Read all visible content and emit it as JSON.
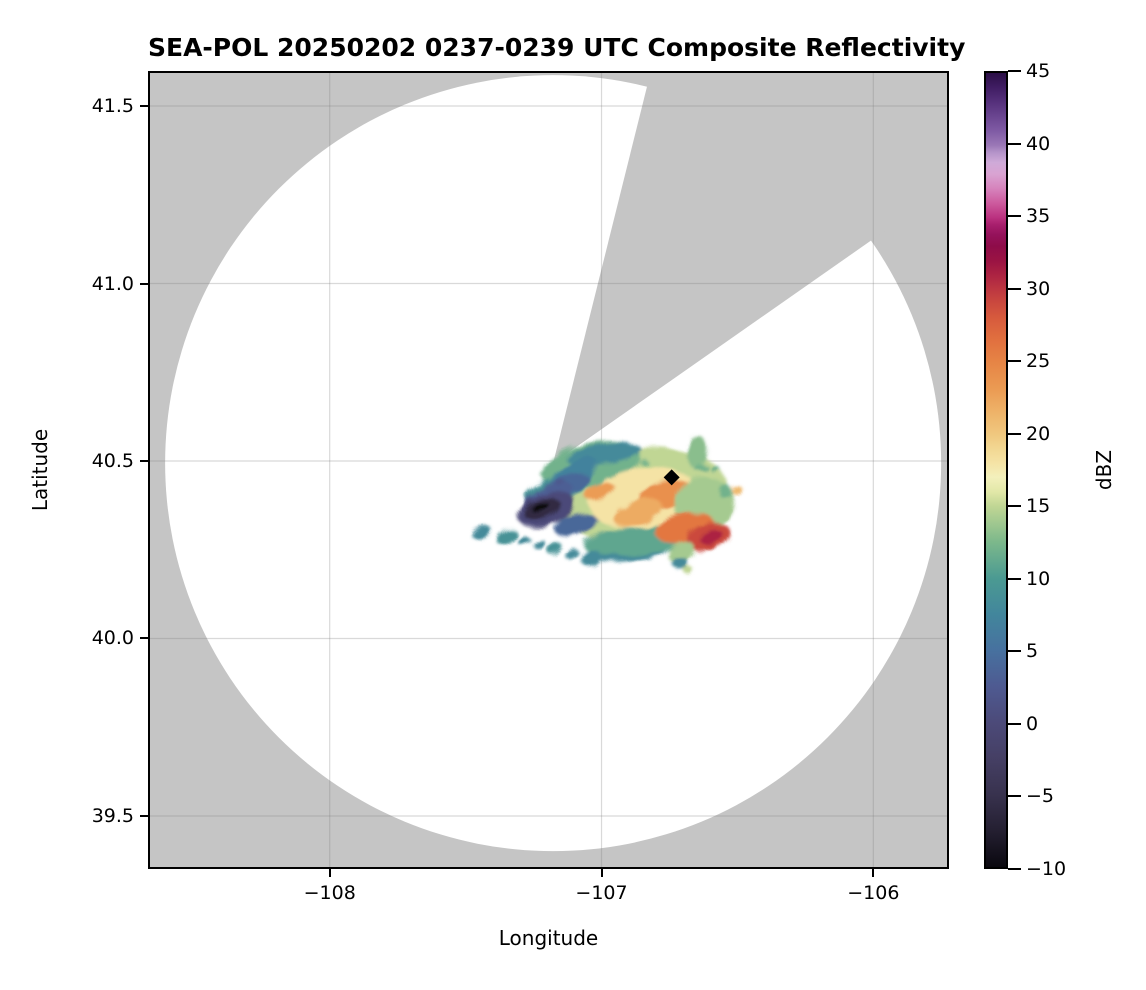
{
  "title": "SEA-POL 20250202 0237-0239 UTC Composite Reflectivity",
  "axes": {
    "xlabel": "Longitude",
    "ylabel": "Latitude",
    "xlim": [
      -108.6685,
      -105.7216
    ],
    "ylim": [
      39.3507,
      41.5986
    ],
    "x_ticks": [
      {
        "value": -108,
        "label": "−108"
      },
      {
        "value": -107,
        "label": "−107"
      },
      {
        "value": -106,
        "label": "−106"
      }
    ],
    "y_ticks": [
      {
        "value": 41.5,
        "label": "41.5"
      },
      {
        "value": 41.0,
        "label": "41.0"
      },
      {
        "value": 40.5,
        "label": "40.5"
      },
      {
        "value": 40.0,
        "label": "40.0"
      },
      {
        "value": 39.5,
        "label": "39.5"
      }
    ],
    "grid_color": "rgba(128,128,128,0.30)",
    "spine_color": "#000000"
  },
  "colorbar": {
    "label": "dBZ",
    "min": -10,
    "max": 45,
    "ticks": [
      {
        "value": 45,
        "label": "45"
      },
      {
        "value": 40,
        "label": "40"
      },
      {
        "value": 35,
        "label": "35"
      },
      {
        "value": 30,
        "label": "30"
      },
      {
        "value": 25,
        "label": "25"
      },
      {
        "value": 20,
        "label": "20"
      },
      {
        "value": 15,
        "label": "15"
      },
      {
        "value": 10,
        "label": "10"
      },
      {
        "value": 5,
        "label": "5"
      },
      {
        "value": 0,
        "label": "0"
      },
      {
        "value": -5,
        "label": "−5"
      },
      {
        "value": -10,
        "label": "−10"
      }
    ]
  },
  "chart_data": {
    "type": "heatmap",
    "title": "SEA-POL 20250202 0237-0239 UTC Composite Reflectivity",
    "variable": "composite radar reflectivity",
    "units": "dBZ",
    "xlabel": "Longitude",
    "ylabel": "Latitude",
    "xlim": [
      -108.6685,
      -105.7216
    ],
    "ylim": [
      39.3507,
      41.5986
    ],
    "value_range": [
      -10,
      45
    ],
    "no_data_color": "#c5c5c5",
    "scan_area_color": "#ffffff",
    "radar": {
      "name": "SEA-POL",
      "longitude": -107.178,
      "latitude": 40.494,
      "range_deg_lat": 1.093,
      "blocked_sector_azimuth_deg": [
        14,
        55
      ]
    },
    "site_marker": {
      "shape": "diamond",
      "color": "#000000",
      "longitude": -106.742,
      "latitude": 40.454,
      "half_size_px": 8
    },
    "colormap_name": "ChaseSpectral-like",
    "colormap_stops": [
      [
        -10,
        "#0a080f"
      ],
      [
        -7.5,
        "#241f31"
      ],
      [
        -5,
        "#38324e"
      ],
      [
        -2.5,
        "#453f64"
      ],
      [
        0,
        "#4c4a79"
      ],
      [
        2.5,
        "#4e5a91"
      ],
      [
        5,
        "#47719f"
      ],
      [
        7.5,
        "#42869c"
      ],
      [
        10,
        "#4b9a92"
      ],
      [
        12.5,
        "#7cb88b"
      ],
      [
        15,
        "#c0d694"
      ],
      [
        16,
        "#e2e8a8"
      ],
      [
        17,
        "#f3f0bc"
      ],
      [
        18,
        "#f5e3a5"
      ],
      [
        19,
        "#f2d792"
      ],
      [
        20,
        "#f0c77e"
      ],
      [
        21.5,
        "#eeb369"
      ],
      [
        23,
        "#eb9c54"
      ],
      [
        25,
        "#e68445"
      ],
      [
        26.5,
        "#e1703f"
      ],
      [
        28,
        "#d75b3d"
      ],
      [
        29,
        "#cb4a3e"
      ],
      [
        30,
        "#bd3741"
      ],
      [
        31,
        "#ac2342"
      ],
      [
        32,
        "#9a1343"
      ],
      [
        33,
        "#8e0c49"
      ],
      [
        33.8,
        "#95125b"
      ],
      [
        34.5,
        "#a81f6d"
      ],
      [
        35,
        "#bb3280"
      ],
      [
        36,
        "#cd5b9e"
      ],
      [
        37,
        "#d683bc"
      ],
      [
        38,
        "#d9a3d2"
      ],
      [
        38.8,
        "#cfaad8"
      ],
      [
        39.5,
        "#b493c9"
      ],
      [
        40,
        "#9a77b6"
      ],
      [
        41,
        "#7f5aa4"
      ],
      [
        42,
        "#6a4590"
      ],
      [
        43,
        "#55307b"
      ],
      [
        44,
        "#401d63"
      ],
      [
        45,
        "#2b0e46"
      ]
    ],
    "echo_blobs_format": [
      "lon_center",
      "lat_center",
      "rx_deg_lon",
      "ry_deg_lat",
      "rotation_deg",
      "dBZ"
    ],
    "echo_blobs": [
      [
        -106.858,
        40.404,
        0.324,
        0.132,
        -6,
        15
      ],
      [
        -107.039,
        40.489,
        0.184,
        0.062,
        -12,
        12
      ],
      [
        -106.994,
        40.52,
        0.14,
        0.028,
        -8,
        8
      ],
      [
        -107.105,
        40.458,
        0.103,
        0.034,
        -35,
        7
      ],
      [
        -107.167,
        40.418,
        0.118,
        0.031,
        -12,
        9
      ],
      [
        -107.123,
        40.432,
        0.081,
        0.028,
        -20,
        4
      ],
      [
        -107.094,
        40.32,
        0.081,
        0.031,
        -15,
        4
      ],
      [
        -107.197,
        40.401,
        0.096,
        0.028,
        -22,
        3
      ],
      [
        -107.204,
        40.365,
        0.11,
        0.045,
        -18,
        0
      ],
      [
        -107.219,
        40.365,
        0.07,
        0.028,
        -20,
        -6
      ],
      [
        -107.226,
        40.37,
        0.033,
        0.011,
        -20,
        -10
      ],
      [
        -106.902,
        40.246,
        0.147,
        0.028,
        -5,
        8
      ],
      [
        -106.866,
        40.275,
        0.202,
        0.039,
        -5,
        11
      ],
      [
        -106.847,
        40.396,
        0.202,
        0.085,
        -8,
        18
      ],
      [
        -107.006,
        40.413,
        0.059,
        0.023,
        -15,
        23
      ],
      [
        -106.755,
        40.407,
        0.103,
        0.039,
        -10,
        24
      ],
      [
        -106.866,
        40.354,
        0.092,
        0.034,
        -20,
        22
      ],
      [
        -106.623,
        40.382,
        0.11,
        0.073,
        0,
        14
      ],
      [
        -106.693,
        40.311,
        0.11,
        0.039,
        -12,
        26
      ],
      [
        -106.608,
        40.286,
        0.085,
        0.037,
        -15,
        29
      ],
      [
        -106.597,
        40.286,
        0.044,
        0.02,
        -15,
        31
      ],
      [
        -106.649,
        40.525,
        0.04,
        0.045,
        5,
        13
      ],
      [
        -106.502,
        40.418,
        0.022,
        0.011,
        0,
        21
      ],
      [
        -106.546,
        40.415,
        0.022,
        0.02,
        0,
        12
      ],
      [
        -106.844,
        40.497,
        0.015,
        0.008,
        0,
        12
      ],
      [
        -106.631,
        40.48,
        0.029,
        0.008,
        0,
        12
      ],
      [
        -106.579,
        40.475,
        0.018,
        0.008,
        0,
        12
      ],
      [
        -106.707,
        40.244,
        0.051,
        0.028,
        -30,
        14
      ],
      [
        -106.711,
        40.213,
        0.029,
        0.017,
        0,
        8
      ],
      [
        -106.682,
        40.193,
        0.018,
        0.011,
        0,
        15
      ],
      [
        -107.039,
        40.227,
        0.037,
        0.023,
        -20,
        8
      ],
      [
        -107.443,
        40.3,
        0.037,
        0.017,
        -20,
        8
      ],
      [
        -107.348,
        40.286,
        0.04,
        0.02,
        -25,
        9
      ],
      [
        -107.285,
        40.275,
        0.022,
        0.011,
        -20,
        8
      ],
      [
        -107.23,
        40.266,
        0.022,
        0.011,
        -20,
        8
      ],
      [
        -107.175,
        40.255,
        0.029,
        0.014,
        -25,
        9
      ],
      [
        -107.109,
        40.238,
        0.026,
        0.011,
        -25,
        8
      ],
      [
        -107.149,
        40.438,
        0.018,
        0.006,
        -10,
        2
      ]
    ]
  }
}
